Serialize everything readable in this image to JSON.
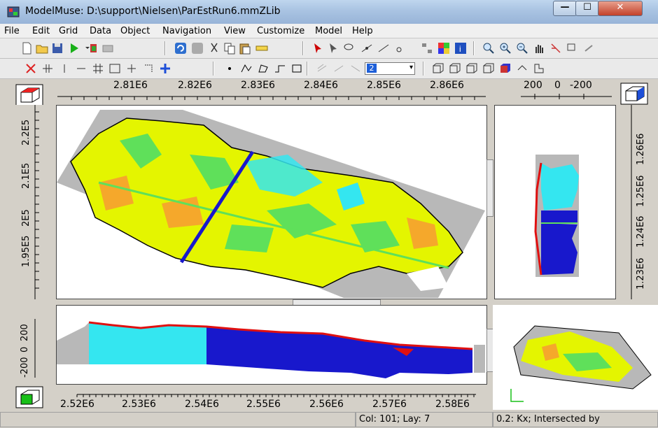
{
  "window": {
    "title": "ModelMuse: D:\\support\\Nielsen\\ParEstRun6.mmZLib",
    "minimize_glyph": "—",
    "maximize_glyph": "☐",
    "close_glyph": "✕"
  },
  "menu": {
    "items": [
      "File",
      "Edit",
      "Grid",
      "Data",
      "Object",
      "Navigation",
      "View",
      "Customize",
      "Model",
      "Help"
    ]
  },
  "toolbar": {
    "layer_selector_value": "2"
  },
  "top_view": {
    "x_ticks": [
      "2.81E6",
      "2.82E6",
      "2.83E6",
      "2.84E6",
      "2.85E6",
      "2.86E6"
    ],
    "y_ticks": [
      "2.2E5",
      "2.1E5",
      "2E5",
      "1.95E5"
    ]
  },
  "side_view": {
    "x_ticks": [
      "200",
      "0",
      "-200"
    ],
    "y_ticks": [
      "1.26E6",
      "1.25E6",
      "1.24E6",
      "1.23E6"
    ]
  },
  "front_view": {
    "z_ticks": [
      "200",
      "0",
      "-200"
    ],
    "x_ticks": [
      "2.52E6",
      "2.53E6",
      "2.54E6",
      "2.55E6",
      "2.56E6",
      "2.57E6",
      "2.58E6"
    ]
  },
  "status": {
    "col_layer": "Col: 101; Lay: 7",
    "info": "0.2: Kx; Intersected by"
  },
  "colors": {
    "model_yellow": "#e4f500",
    "model_green": "#5fe05a",
    "model_orange": "#f5a82b",
    "model_cyan": "#34e6f0",
    "model_blue": "#1818cc",
    "inactive_gray": "#b8b8b8",
    "red_outline": "#e01010"
  },
  "icons": [
    "app-icon",
    "new-icon",
    "open-icon",
    "save-icon",
    "run-icon",
    "zoom-in-icon",
    "pan-icon",
    "cube-icon"
  ]
}
